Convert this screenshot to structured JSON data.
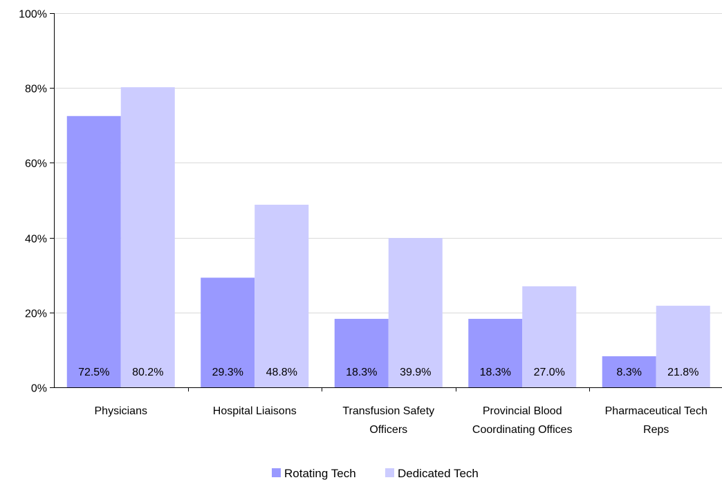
{
  "chart_data": {
    "type": "bar",
    "categories": [
      [
        "Physicians"
      ],
      [
        "Hospital Liaisons"
      ],
      [
        "Transfusion Safety",
        "Officers"
      ],
      [
        "Provincial Blood",
        "Coordinating Offices"
      ],
      [
        "Pharmaceutical Tech",
        "Reps"
      ]
    ],
    "series": [
      {
        "name": "Rotating Tech",
        "color": "#9999ff",
        "values": [
          72.5,
          29.3,
          18.3,
          18.3,
          8.3
        ],
        "labels": [
          "72.5%",
          "29.3%",
          "18.3%",
          "18.3%",
          "8.3%"
        ]
      },
      {
        "name": "Dedicated Tech",
        "color": "#ccccff",
        "values": [
          80.2,
          48.8,
          39.9,
          27.0,
          21.8
        ],
        "labels": [
          "80.2%",
          "48.8%",
          "39.9%",
          "27.0%",
          "21.8%"
        ]
      }
    ],
    "ylim": [
      0,
      100
    ],
    "yticks": [
      0,
      20,
      40,
      60,
      80,
      100
    ],
    "ytick_labels": [
      "0%",
      "20%",
      "40%",
      "60%",
      "80%",
      "100%"
    ],
    "grid": true,
    "legend_position": "bottom",
    "title": "",
    "xlabel": "",
    "ylabel": ""
  }
}
